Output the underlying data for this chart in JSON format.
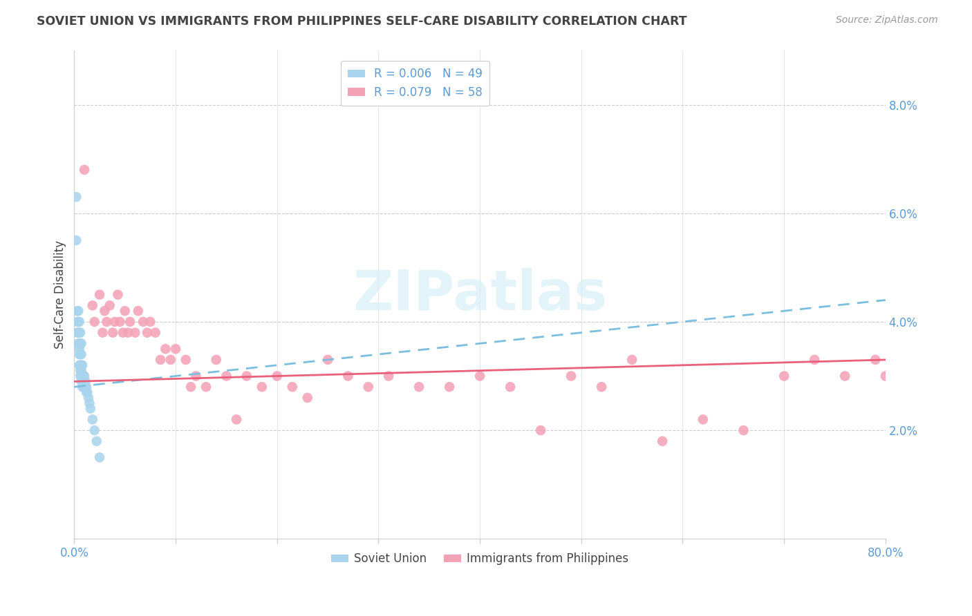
{
  "title": "SOVIET UNION VS IMMIGRANTS FROM PHILIPPINES SELF-CARE DISABILITY CORRELATION CHART",
  "source": "Source: ZipAtlas.com",
  "ylabel": "Self-Care Disability",
  "xlim": [
    0.0,
    0.8
  ],
  "ylim": [
    0.0,
    0.09
  ],
  "xtick_positions": [
    0.0,
    0.1,
    0.2,
    0.3,
    0.4,
    0.5,
    0.6,
    0.7,
    0.8
  ],
  "xticklabels": [
    "0.0%",
    "",
    "",
    "",
    "",
    "",
    "",
    "",
    "80.0%"
  ],
  "ytick_positions": [
    0.0,
    0.02,
    0.04,
    0.06,
    0.08
  ],
  "yticklabels_right": [
    "",
    "2.0%",
    "4.0%",
    "6.0%",
    "8.0%"
  ],
  "legend1_label": "R = 0.006   N = 49",
  "legend2_label": "R = 0.079   N = 58",
  "soviet_color": "#A8D4EE",
  "philippines_color": "#F4A0B5",
  "soviet_line_color": "#7BBEDD",
  "philippines_line_color": "#E8607A",
  "tick_color": "#5B9BD5",
  "text_color": "#444444",
  "source_color": "#999999",
  "grid_color": "#CCCCCC",
  "background_color": "#FFFFFF",
  "watermark": "ZIPatlas",
  "watermark_color": "#D8EEF8",
  "soviet_x": [
    0.002,
    0.002,
    0.003,
    0.003,
    0.003,
    0.004,
    0.004,
    0.004,
    0.004,
    0.005,
    0.005,
    0.005,
    0.005,
    0.005,
    0.005,
    0.006,
    0.006,
    0.006,
    0.006,
    0.006,
    0.006,
    0.007,
    0.007,
    0.007,
    0.007,
    0.007,
    0.007,
    0.008,
    0.008,
    0.008,
    0.008,
    0.009,
    0.009,
    0.009,
    0.01,
    0.01,
    0.01,
    0.011,
    0.011,
    0.012,
    0.012,
    0.013,
    0.014,
    0.015,
    0.016,
    0.018,
    0.02,
    0.022,
    0.025
  ],
  "soviet_y": [
    0.063,
    0.055,
    0.042,
    0.04,
    0.038,
    0.042,
    0.04,
    0.038,
    0.036,
    0.04,
    0.038,
    0.036,
    0.035,
    0.034,
    0.032,
    0.038,
    0.036,
    0.034,
    0.032,
    0.031,
    0.03,
    0.036,
    0.034,
    0.032,
    0.031,
    0.03,
    0.029,
    0.032,
    0.03,
    0.029,
    0.028,
    0.03,
    0.029,
    0.028,
    0.03,
    0.029,
    0.028,
    0.029,
    0.028,
    0.028,
    0.027,
    0.027,
    0.026,
    0.025,
    0.024,
    0.022,
    0.02,
    0.018,
    0.015
  ],
  "phil_x": [
    0.01,
    0.018,
    0.02,
    0.025,
    0.028,
    0.03,
    0.032,
    0.035,
    0.038,
    0.04,
    0.043,
    0.045,
    0.048,
    0.05,
    0.053,
    0.055,
    0.06,
    0.063,
    0.068,
    0.072,
    0.075,
    0.08,
    0.085,
    0.09,
    0.095,
    0.1,
    0.11,
    0.115,
    0.12,
    0.13,
    0.14,
    0.15,
    0.16,
    0.17,
    0.185,
    0.2,
    0.215,
    0.23,
    0.25,
    0.27,
    0.29,
    0.31,
    0.34,
    0.37,
    0.4,
    0.43,
    0.46,
    0.49,
    0.52,
    0.55,
    0.58,
    0.62,
    0.66,
    0.7,
    0.73,
    0.76,
    0.79,
    0.8
  ],
  "phil_y": [
    0.068,
    0.043,
    0.04,
    0.045,
    0.038,
    0.042,
    0.04,
    0.043,
    0.038,
    0.04,
    0.045,
    0.04,
    0.038,
    0.042,
    0.038,
    0.04,
    0.038,
    0.042,
    0.04,
    0.038,
    0.04,
    0.038,
    0.033,
    0.035,
    0.033,
    0.035,
    0.033,
    0.028,
    0.03,
    0.028,
    0.033,
    0.03,
    0.022,
    0.03,
    0.028,
    0.03,
    0.028,
    0.026,
    0.033,
    0.03,
    0.028,
    0.03,
    0.028,
    0.028,
    0.03,
    0.028,
    0.02,
    0.03,
    0.028,
    0.033,
    0.018,
    0.022,
    0.02,
    0.03,
    0.033,
    0.03,
    0.033,
    0.03
  ]
}
